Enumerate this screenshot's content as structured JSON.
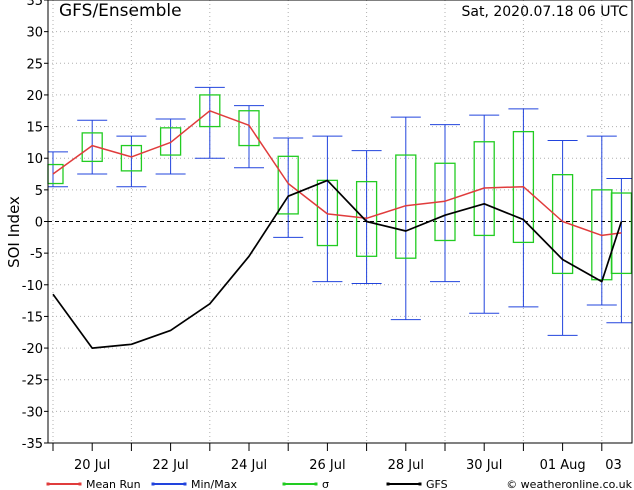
{
  "chart_data": {
    "type": "line",
    "title": "GFS/Ensemble",
    "run_datetime": "Sat, 2020.07.18   06 UTC",
    "ylabel": "SOI Index",
    "ylim": [
      -35,
      35
    ],
    "yticks": [
      35,
      30,
      25,
      20,
      15,
      10,
      5,
      0,
      -5,
      -10,
      -15,
      -20,
      -25,
      -30,
      -35
    ],
    "xlim": [
      0,
      14.5
    ],
    "xtick_labels": [
      {
        "x": 1,
        "label": "20 Jul"
      },
      {
        "x": 3,
        "label": "22 Jul"
      },
      {
        "x": 5,
        "label": "24 Jul"
      },
      {
        "x": 7,
        "label": "26 Jul"
      },
      {
        "x": 9,
        "label": "28 Jul"
      },
      {
        "x": 11,
        "label": "30 Jul"
      },
      {
        "x": 13,
        "label": "01 Aug"
      },
      {
        "x": 14.3,
        "label": "03"
      }
    ],
    "x": [
      0,
      1,
      2,
      3,
      4,
      5,
      6,
      7,
      8,
      9,
      10,
      11,
      12,
      13,
      14,
      14.5
    ],
    "series": [
      {
        "name": "Mean Run",
        "color": "#e03c3c",
        "values": [
          7.5,
          12,
          10.2,
          12.5,
          17.5,
          15.2,
          6,
          1.2,
          0.5,
          2.5,
          3.2,
          5.3,
          5.5,
          0,
          -2.2,
          -1.8
        ]
      },
      {
        "name": "GFS",
        "color": "#000000",
        "values": [
          -11.5,
          -20,
          -19.4,
          -17.2,
          -13,
          -5.5,
          4,
          6.5,
          0,
          -1.5,
          1,
          2.8,
          0.3,
          -6,
          -9.5,
          0
        ]
      }
    ],
    "min_max": {
      "name": "Min/Max",
      "color": "#2244dd",
      "x": [
        0,
        1,
        2,
        3,
        4,
        5,
        6,
        7,
        8,
        9,
        10,
        11,
        12,
        13,
        14,
        14.5
      ],
      "min": [
        5.5,
        7.5,
        5.5,
        7.5,
        10,
        8.5,
        -2.5,
        -9.5,
        -9.8,
        -15.5,
        -9.5,
        -14.5,
        -13.5,
        -18,
        -13.2,
        -16
      ],
      "max": [
        11,
        16,
        13.5,
        16.2,
        21.2,
        18.3,
        13.2,
        13.5,
        11.2,
        16.5,
        15.3,
        16.8,
        17.8,
        12.8,
        13.5,
        6.8
      ]
    },
    "sigma": {
      "name": "σ",
      "color": "#22cc22",
      "x": [
        0,
        1,
        2,
        3,
        4,
        5,
        6,
        7,
        8,
        9,
        10,
        11,
        12,
        13,
        14,
        14.5
      ],
      "low": [
        6,
        9.5,
        8,
        10.5,
        15,
        12,
        1.2,
        -3.8,
        -5.5,
        -5.8,
        -3,
        -2.2,
        -3.3,
        -8.2,
        -9.2,
        -8.2
      ],
      "high": [
        9,
        14,
        12,
        14.8,
        20,
        17.5,
        10.3,
        6.5,
        6.3,
        10.5,
        9.2,
        12.6,
        14.2,
        7.4,
        5,
        4.5
      ]
    },
    "legend": [
      {
        "label": "Mean Run",
        "color": "#e03c3c"
      },
      {
        "label": "Min/Max",
        "color": "#2244dd"
      },
      {
        "label": "σ",
        "color": "#22cc22"
      },
      {
        "label": "GFS",
        "color": "#000000"
      }
    ],
    "credit": "© weatheronline.co.uk",
    "grid": true,
    "zero_line_dashed": true
  }
}
